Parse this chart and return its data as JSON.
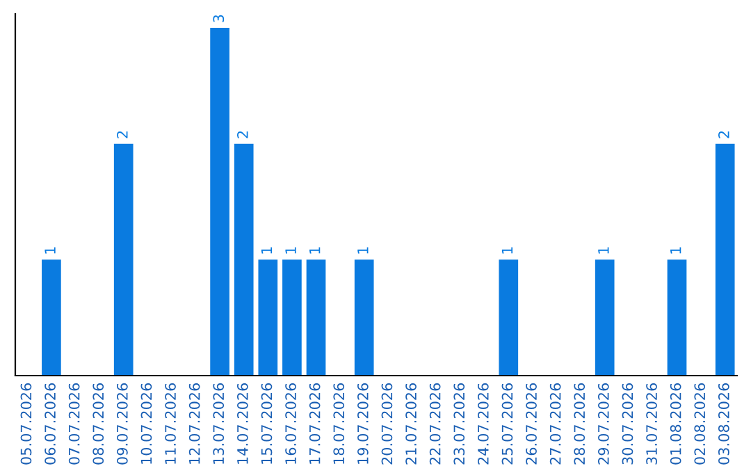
{
  "chart_data": {
    "type": "bar",
    "categories": [
      "05.07.2026",
      "06.07.2026",
      "07.07.2026",
      "08.07.2026",
      "09.07.2026",
      "10.07.2026",
      "11.07.2026",
      "12.07.2026",
      "13.07.2026",
      "14.07.2026",
      "15.07.2026",
      "16.07.2026",
      "17.07.2026",
      "18.07.2026",
      "19.07.2026",
      "20.07.2026",
      "21.07.2026",
      "22.07.2026",
      "23.07.2026",
      "24.07.2026",
      "25.07.2026",
      "26.07.2026",
      "27.07.2026",
      "28.07.2026",
      "29.07.2026",
      "30.07.2026",
      "31.07.2026",
      "01.08.2026",
      "02.08.2026",
      "03.08.2026"
    ],
    "values": [
      0,
      1,
      0,
      0,
      2,
      0,
      0,
      0,
      3,
      2,
      1,
      1,
      1,
      0,
      1,
      0,
      0,
      0,
      0,
      0,
      1,
      0,
      0,
      0,
      1,
      0,
      0,
      1,
      0,
      2
    ],
    "value_labels": [
      null,
      "1",
      null,
      null,
      "2",
      null,
      null,
      null,
      "3",
      "2",
      "1",
      "1",
      "1",
      null,
      "1",
      null,
      null,
      null,
      null,
      null,
      "1",
      null,
      null,
      null,
      "1",
      null,
      null,
      "1",
      null,
      "2"
    ],
    "color": "#0a7be0",
    "tick_labels": "x",
    "grid": false
  }
}
